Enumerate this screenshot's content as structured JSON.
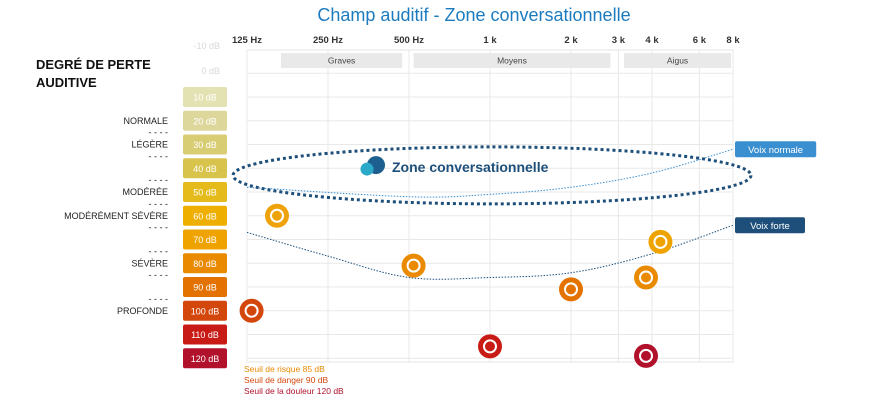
{
  "chart_data": {
    "type": "scatter",
    "title": "Champ auditif - Zone conversationnelle",
    "y_axis_title": "DEGRÉ DE PERTE AUDITIVE",
    "x_scale": "log",
    "x_ticks": [
      "125 Hz",
      "250 Hz",
      "500 Hz",
      "1 k",
      "2 k",
      "3 k",
      "4 k",
      "6 k",
      "8 k"
    ],
    "x_tick_values": [
      125,
      250,
      500,
      1000,
      2000,
      3000,
      4000,
      6000,
      8000
    ],
    "y_inverted": true,
    "ylim": [
      -10,
      120
    ],
    "grid": true,
    "faded_levels": [
      "-10 dB",
      "0 dB"
    ],
    "db_levels": [
      {
        "label": "10 dB",
        "value": 10,
        "color": "#e3e2b3"
      },
      {
        "label": "20 dB",
        "value": 20,
        "color": "#ddd79c"
      },
      {
        "label": "30 dB",
        "value": 30,
        "color": "#d9cd74"
      },
      {
        "label": "40 dB",
        "value": 40,
        "color": "#d8c44d"
      },
      {
        "label": "50 dB",
        "value": 50,
        "color": "#e5bb1c"
      },
      {
        "label": "60 dB",
        "value": 60,
        "color": "#eeaf00"
      },
      {
        "label": "70 dB",
        "value": 70,
        "color": "#efa300"
      },
      {
        "label": "80 dB",
        "value": 80,
        "color": "#e98a00"
      },
      {
        "label": "90 dB",
        "value": 90,
        "color": "#e47200"
      },
      {
        "label": "100 dB",
        "value": 100,
        "color": "#d4470c"
      },
      {
        "label": "110 dB",
        "value": 110,
        "color": "#c91b16"
      },
      {
        "label": "120 dB",
        "value": 120,
        "color": "#b1112b"
      }
    ],
    "hearing_categories": [
      {
        "label": "NORMALE",
        "value": 20
      },
      {
        "label": "LÉGÈRE",
        "value": 30
      },
      {
        "label": "MODÉRÉE",
        "value": 50
      },
      {
        "label": "MODÉRÉMENT SÉVÈRE",
        "value": 60
      },
      {
        "label": "SÉVÈRE",
        "value": 80
      },
      {
        "label": "PROFONDE",
        "value": 100
      }
    ],
    "category_dividers": [
      25,
      35,
      45,
      55,
      65,
      75,
      85,
      95
    ],
    "frequency_bands": [
      {
        "label": "Graves",
        "from": 125,
        "to": 480
      },
      {
        "label": "Moyens",
        "from": 520,
        "to": 2850
      },
      {
        "label": "Aigus",
        "from": 3150,
        "to": 8000
      }
    ],
    "zone_label": "Zone conversationnelle",
    "zone_extent": {
      "x": [
        125,
        8000
      ],
      "y": [
        31,
        55
      ]
    },
    "series": [
      {
        "name": "Voix normale",
        "color": "#3a8fd0",
        "points": [
          [
            125,
            48
          ],
          [
            500,
            52
          ],
          [
            1000,
            51
          ],
          [
            2000,
            48
          ],
          [
            4000,
            42
          ],
          [
            8000,
            32
          ]
        ]
      },
      {
        "name": "Voix forte",
        "color": "#1d4f7a",
        "points": [
          [
            125,
            67
          ],
          [
            250,
            77
          ],
          [
            500,
            86
          ],
          [
            1000,
            86
          ],
          [
            2000,
            84
          ],
          [
            4000,
            76
          ],
          [
            8000,
            64
          ]
        ]
      }
    ],
    "sound_sources": [
      {
        "icon": "boat-icon",
        "x": 125,
        "y": 60,
        "color": "#eea30d"
      },
      {
        "icon": "dog-icon",
        "x": 520,
        "y": 81,
        "color": "#e98a00"
      },
      {
        "icon": "faucet-icon",
        "x": 4300,
        "y": 71,
        "color": "#efa300"
      },
      {
        "icon": "phone-ring-icon",
        "x": 3800,
        "y": 86,
        "color": "#e98a00"
      },
      {
        "icon": "vacuum-icon",
        "x": 2000,
        "y": 91,
        "color": "#e47200"
      },
      {
        "icon": "truck-icon",
        "x": 130,
        "y": 100,
        "color": "#d4470c"
      },
      {
        "icon": "fireworks-icon",
        "x": 1000,
        "y": 115,
        "color": "#c91b16"
      },
      {
        "icon": "airplane-icon",
        "x": 3800,
        "y": 119,
        "color": "#b1112b"
      }
    ],
    "thresholds": [
      {
        "label": "Seuil de risque 85 dB",
        "value": 85,
        "color": "#e98a00"
      },
      {
        "label": "Seuil de danger 90 dB",
        "value": 90,
        "color": "#d4470c"
      },
      {
        "label": "Seuil de la douleur 120 dB",
        "value": 120,
        "color": "#b1112b"
      }
    ]
  }
}
